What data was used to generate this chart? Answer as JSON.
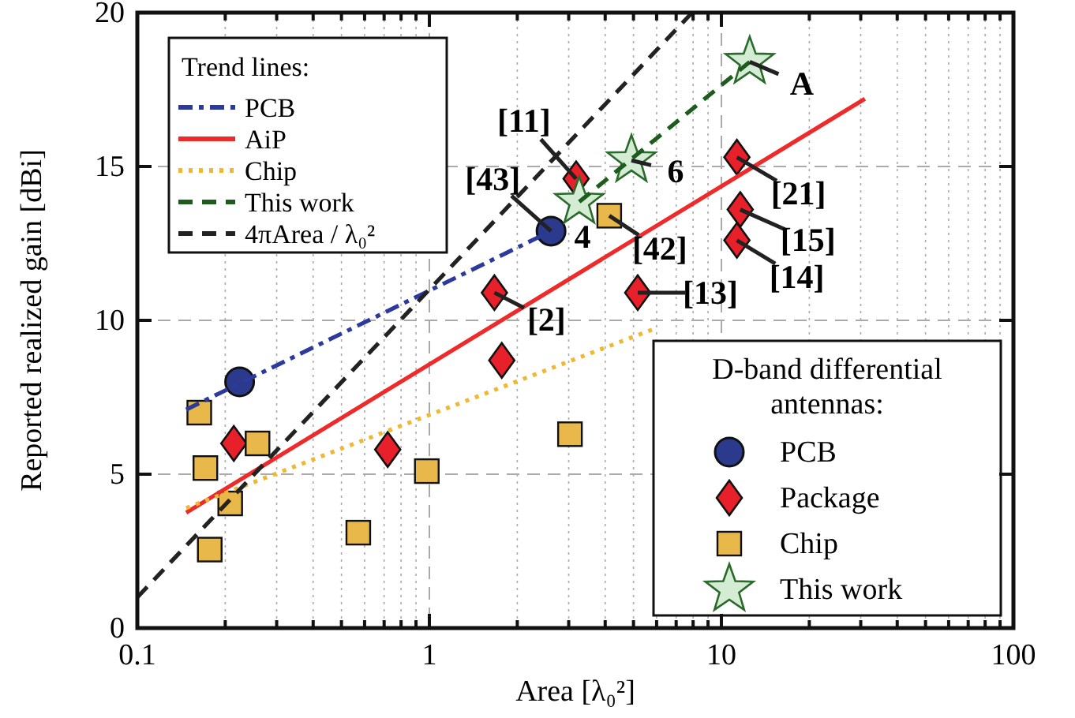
{
  "chart_data": {
    "type": "scatter",
    "xlabel": "Area [λ₀²]",
    "ylabel": "Reported realized gain [dBi]",
    "log": "x",
    "grid": true,
    "legend": [
      "top left",
      "bottom right"
    ],
    "legend_title": [
      "Trend lines:",
      "D-band differential antennas:"
    ],
    "xlim": [
      0.1,
      100
    ],
    "ylim": [
      0,
      20
    ],
    "xticks": [
      0.1,
      {
        "value": 0.2,
        "label": null
      },
      {
        "value": 0.3,
        "label": null
      },
      {
        "value": 0.4,
        "label": null
      },
      {
        "value": 0.5,
        "label": null
      },
      {
        "value": 0.6,
        "label": null
      },
      {
        "value": 0.7,
        "label": null
      },
      {
        "value": 0.8,
        "label": null
      },
      {
        "value": 0.9,
        "label": null
      },
      1,
      {
        "value": 2,
        "label": null
      },
      {
        "value": 3,
        "label": null
      },
      {
        "value": 4,
        "label": null
      },
      {
        "value": 5,
        "label": null
      },
      {
        "value": 6,
        "label": null
      },
      {
        "value": 7,
        "label": null
      },
      {
        "value": 8,
        "label": null
      },
      {
        "value": 9,
        "label": null
      },
      10,
      {
        "value": 20,
        "label": null
      },
      {
        "value": 30,
        "label": null
      },
      {
        "value": 40,
        "label": null
      },
      {
        "value": 50,
        "label": null
      },
      {
        "value": 60,
        "label": null
      },
      {
        "value": 70,
        "label": null
      },
      {
        "value": 80,
        "label": null
      },
      {
        "value": 90,
        "label": null
      },
      100
    ],
    "yticks": [
      0,
      5,
      10,
      15,
      20
    ],
    "series": [
      {
        "name": "PCB",
        "type": "line",
        "color": "#2b3a9c",
        "line_style": "dashdot",
        "marker": "none",
        "x": [
          0.147,
          2.61
        ],
        "values": [
          7.1,
          12.9
        ]
      },
      {
        "name": "AiP",
        "type": "line",
        "color": "#ee2a2a",
        "line_style": "solid",
        "marker": "none",
        "x": [
          0.147,
          31
        ],
        "values": [
          3.75,
          17.2
        ]
      },
      {
        "name": "Chip",
        "type": "line",
        "color": "#f0b830",
        "line_style": "dotted",
        "marker": "none",
        "x": [
          0.147,
          5.8
        ],
        "values": [
          3.9,
          9.7
        ]
      },
      {
        "name": "This work",
        "type": "line",
        "color": "#1e5c1e",
        "line_style": "dashed",
        "marker": "none",
        "x": [
          3.26,
          12.5
        ],
        "values": [
          13.85,
          18.4
        ]
      },
      {
        "name": "4πArea / λ₀²",
        "type": "line",
        "color": "#222222",
        "line_style": "dashed",
        "marker": "none",
        "x": [
          0.1,
          7.94
        ],
        "values": [
          1,
          20
        ]
      },
      {
        "name": "PCB",
        "type": "scatter",
        "color": "#2b3a8c",
        "marker": "circle",
        "x": [
          0.224,
          2.61
        ],
        "values": [
          8.0,
          12.9
        ]
      },
      {
        "name": "Package",
        "type": "scatter",
        "color": "#e8202a",
        "marker": "diamond",
        "x": [
          0.214,
          0.72,
          1.67,
          1.77,
          3.18,
          5.17,
          11.3,
          11.6,
          11.3
        ],
        "values": [
          6.0,
          5.8,
          10.9,
          8.7,
          14.6,
          10.9,
          15.3,
          13.6,
          12.6
        ]
      },
      {
        "name": "Chip",
        "type": "scatter",
        "color": "#e8b84a",
        "marker": "square",
        "x": [
          0.163,
          0.171,
          0.258,
          0.208,
          0.177,
          0.571,
          0.98,
          3.03,
          4.13
        ],
        "values": [
          7.0,
          5.2,
          6.0,
          4.05,
          2.55,
          3.1,
          5.1,
          6.3,
          13.4
        ]
      },
      {
        "name": "This work",
        "type": "scatter",
        "color": "#d4ecd4",
        "marker": "star",
        "x": [
          3.26,
          4.92,
          12.5
        ],
        "values": [
          13.85,
          15.2,
          18.4
        ]
      }
    ],
    "annotations": [
      {
        "text": "[11]",
        "x": 3.18,
        "y": 14.6
      },
      {
        "text": "[43]",
        "x": 2.61,
        "y": 12.9
      },
      {
        "text": "[2]",
        "x": 1.67,
        "y": 10.9
      },
      {
        "text": "[42]",
        "x": 4.13,
        "y": 13.4
      },
      {
        "text": "[13]",
        "x": 5.17,
        "y": 10.9
      },
      {
        "text": "[21]",
        "x": 11.3,
        "y": 15.3
      },
      {
        "text": "[15]",
        "x": 11.6,
        "y": 13.6
      },
      {
        "text": "[14]",
        "x": 11.3,
        "y": 12.6
      },
      {
        "text": "4",
        "x": 3.26,
        "y": 13.85
      },
      {
        "text": "6",
        "x": 4.92,
        "y": 15.2
      },
      {
        "text": "A",
        "x": 12.5,
        "y": 18.4
      }
    ]
  }
}
